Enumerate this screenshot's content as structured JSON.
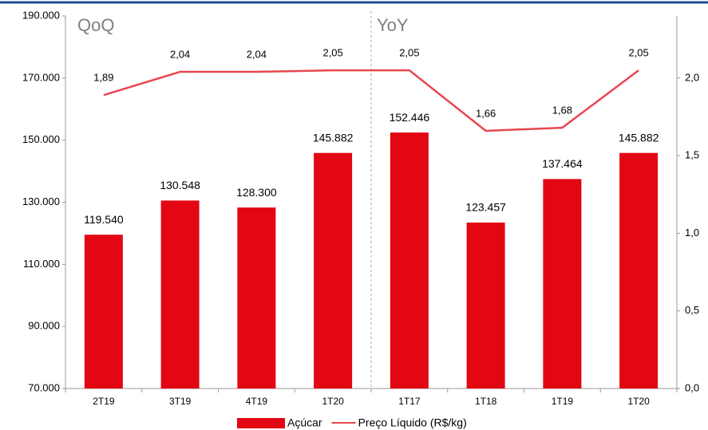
{
  "chart_data": {
    "type": "bar",
    "annotations": [
      "QoQ",
      "YoY"
    ],
    "categories": [
      "2T19",
      "3T19",
      "4T19",
      "1T20",
      "1T17",
      "1T18",
      "1T19",
      "1T20"
    ],
    "series": [
      {
        "name": "Açúcar",
        "type": "bar",
        "color": "#e30613",
        "values": [
          119540,
          130548,
          128300,
          145882,
          152446,
          123457,
          137464,
          145882
        ],
        "value_labels": [
          "119.540",
          "130.548",
          "128.300",
          "145.882",
          "152.446",
          "123.457",
          "137.464",
          "145.882"
        ]
      },
      {
        "name": "Preço Líquido (R$/kg)",
        "type": "line",
        "axis": "y2",
        "color": "#e8474f",
        "values": [
          1.89,
          2.04,
          2.04,
          2.05,
          2.05,
          1.66,
          1.68,
          2.05
        ],
        "value_labels": [
          "1,89",
          "2,04",
          "2,04",
          "2,05",
          "2,05",
          "1,66",
          "1,68",
          "2,05"
        ]
      }
    ],
    "ylim": [
      70000,
      190000
    ],
    "yticks": [
      {
        "value": 70000,
        "label": "70.000"
      },
      {
        "value": 90000,
        "label": "90.000"
      },
      {
        "value": 110000,
        "label": "110.000"
      },
      {
        "value": 130000,
        "label": "130.000"
      },
      {
        "value": 150000,
        "label": "150.000"
      },
      {
        "value": 170000,
        "label": "170.000"
      },
      {
        "value": 190000,
        "label": "190.000"
      }
    ],
    "y2lim": [
      0,
      2.4
    ],
    "y2ticks": [
      {
        "value": 0,
        "label": "0,0"
      },
      {
        "value": 0.5,
        "label": "0,5"
      },
      {
        "value": 1,
        "label": "1,0"
      },
      {
        "value": 1.5,
        "label": "1,5"
      },
      {
        "value": 2,
        "label": "2,0"
      }
    ],
    "legend": "bottom"
  }
}
